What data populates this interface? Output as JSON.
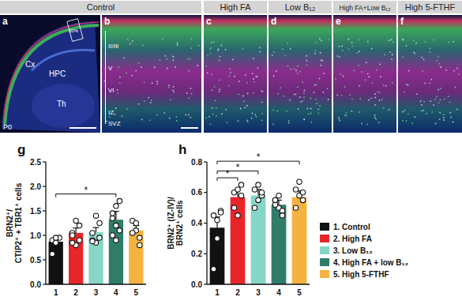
{
  "image_panels": {
    "headers": [
      "Control",
      "High FA",
      "Low B₁₂",
      "High FA+Low B₁₂",
      "High 5-FTHF"
    ],
    "letters": [
      "a",
      "b",
      "c",
      "d",
      "e",
      "f"
    ],
    "region_labels": [
      "Cx",
      "HPC",
      "Th"
    ],
    "age": "P0",
    "inset": "20%",
    "layer_labels": [
      "II/III",
      "V",
      "VI",
      "IZ",
      "SVZ"
    ]
  },
  "chart_data": [
    {
      "type": "bar",
      "panel": "g",
      "ylabel": [
        "BRN2⁺/",
        "CTIP2⁺ + TBR1⁺ cells"
      ],
      "categories": [
        "1",
        "2",
        "3",
        "4",
        "5"
      ],
      "values": [
        0.87,
        1.05,
        1.07,
        1.32,
        1.1
      ],
      "errors": [
        0.08,
        0.1,
        0.09,
        0.17,
        0.1
      ],
      "points": [
        [
          0.9,
          0.85,
          0.95,
          0.62,
          0.95
        ],
        [
          1.05,
          0.8,
          1.2,
          0.85,
          1.3,
          0.9,
          1.0
        ],
        [
          1.05,
          0.85,
          1.25,
          0.9,
          1.4,
          0.95,
          0.88
        ],
        [
          1.35,
          1.6,
          1.7,
          1.0,
          0.9,
          1.1,
          1.45,
          1.2
        ],
        [
          1.3,
          1.1,
          0.95,
          1.05,
          1.25,
          0.8
        ]
      ],
      "colors": [
        "#111111",
        "#e8262a",
        "#86d6c6",
        "#2f7d68",
        "#f5b240"
      ],
      "significance": [
        {
          "between": [
            "1",
            "4"
          ],
          "label": "*"
        }
      ],
      "ylim": [
        0,
        2.5
      ],
      "yticks": [
        {
          "value": 0,
          "label": "0.0"
        },
        0.5,
        {
          "value": 1,
          "label": "1.0"
        },
        1.5,
        {
          "value": 2,
          "label": "2.0"
        },
        2.5
      ],
      "grid": false
    },
    {
      "type": "bar",
      "panel": "h",
      "ylabel": [
        "BRN2⁺ (IZ-IV)/",
        "BRN2⁺ cells"
      ],
      "categories": [
        "1",
        "2",
        "3",
        "4",
        "5"
      ],
      "values": [
        0.37,
        0.57,
        0.58,
        0.52,
        0.57
      ],
      "errors": [
        0.07,
        0.05,
        0.04,
        0.03,
        0.04
      ],
      "points": [
        [
          0.45,
          0.42,
          0.48,
          0.1,
          0.3,
          0.47
        ],
        [
          0.6,
          0.62,
          0.65,
          0.5,
          0.45,
          0.58
        ],
        [
          0.62,
          0.65,
          0.58,
          0.5,
          0.55,
          0.6
        ],
        [
          0.55,
          0.5,
          0.48,
          0.52,
          0.58,
          0.45,
          0.55
        ],
        [
          0.62,
          0.67,
          0.55,
          0.5,
          0.58,
          0.6
        ]
      ],
      "colors": [
        "#111111",
        "#e8262a",
        "#86d6c6",
        "#2f7d68",
        "#f5b240"
      ],
      "significance": [
        {
          "between": [
            "1",
            "2"
          ],
          "label": "*"
        },
        {
          "between": [
            "1",
            "3"
          ],
          "label": "*"
        },
        {
          "between": [
            "1",
            "5"
          ],
          "label": "*"
        }
      ],
      "ylim": [
        0,
        0.8
      ],
      "yticks": [
        {
          "value": 0,
          "label": "0.0"
        },
        0.2,
        0.4,
        0.6,
        0.8
      ],
      "grid": false
    }
  ],
  "legend_entries": [
    {
      "label": "1. Control",
      "color": "#111111"
    },
    {
      "label": "2. High FA",
      "color": "#e8262a"
    },
    {
      "label": "3. Low B₁₂",
      "color": "#86d6c6"
    },
    {
      "label": "4. High FA + low B₁₂",
      "color": "#2f7d68"
    },
    {
      "label": "5. High 5-FTHF",
      "color": "#f5b240"
    }
  ]
}
